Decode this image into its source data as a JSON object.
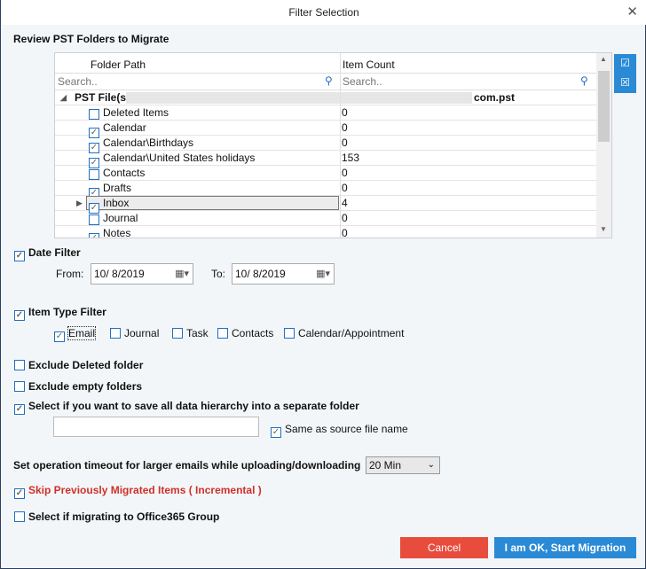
{
  "title": "Filter Selection",
  "section_title": "Review PST Folders to Migrate",
  "grid": {
    "columns": [
      "Folder Path",
      "Item Count"
    ],
    "search_placeholder": "Search..",
    "root": {
      "prefix": "PST File(s): D:\\",
      "suffix": "com.pst"
    },
    "rows": [
      {
        "name": "Deleted Items",
        "count": "0",
        "checked": false
      },
      {
        "name": "Calendar",
        "count": "0",
        "checked": true
      },
      {
        "name": "Calendar\\Birthdays",
        "count": "0",
        "checked": true
      },
      {
        "name": "Calendar\\United States holidays",
        "count": "153",
        "checked": true
      },
      {
        "name": "Contacts",
        "count": "0",
        "checked": false
      },
      {
        "name": "Drafts",
        "count": "0",
        "checked": true
      },
      {
        "name": "Inbox",
        "count": "4",
        "checked": true,
        "selected": true
      },
      {
        "name": "Journal",
        "count": "0",
        "checked": false
      },
      {
        "name": "Notes",
        "count": "0",
        "checked": true
      }
    ]
  },
  "date_filter": {
    "label": "Date Filter",
    "checked": true,
    "from_label": "From:",
    "from": "10/  8/2019",
    "to_label": "To:",
    "to": "10/  8/2019"
  },
  "item_type": {
    "label": "Item Type Filter",
    "checked": true,
    "types": [
      {
        "label": "Email",
        "checked": true
      },
      {
        "label": "Journal",
        "checked": false
      },
      {
        "label": "Task",
        "checked": false
      },
      {
        "label": "Contacts",
        "checked": false
      },
      {
        "label": "Calendar/Appointment",
        "checked": false
      }
    ]
  },
  "options": {
    "exclude_deleted": "Exclude Deleted folder",
    "exclude_empty": "Exclude empty folders",
    "save_hierarchy": "Select if you want to save all data hierarchy into a separate folder",
    "folder_name": "",
    "same_as_source": "Same as source file name",
    "timeout_label": "Set operation timeout for larger emails while uploading/downloading",
    "timeout_value": "20 Min",
    "skip_migrated": "Skip Previously Migrated Items ( Incremental )",
    "office365_group": "Select if migrating to Office365 Group"
  },
  "buttons": {
    "cancel": "Cancel",
    "start": "I am OK, Start Migration"
  },
  "colors": {
    "accent": "#2a8ad6",
    "cancel": "#e84c3d",
    "warning_text": "#d0302a"
  }
}
